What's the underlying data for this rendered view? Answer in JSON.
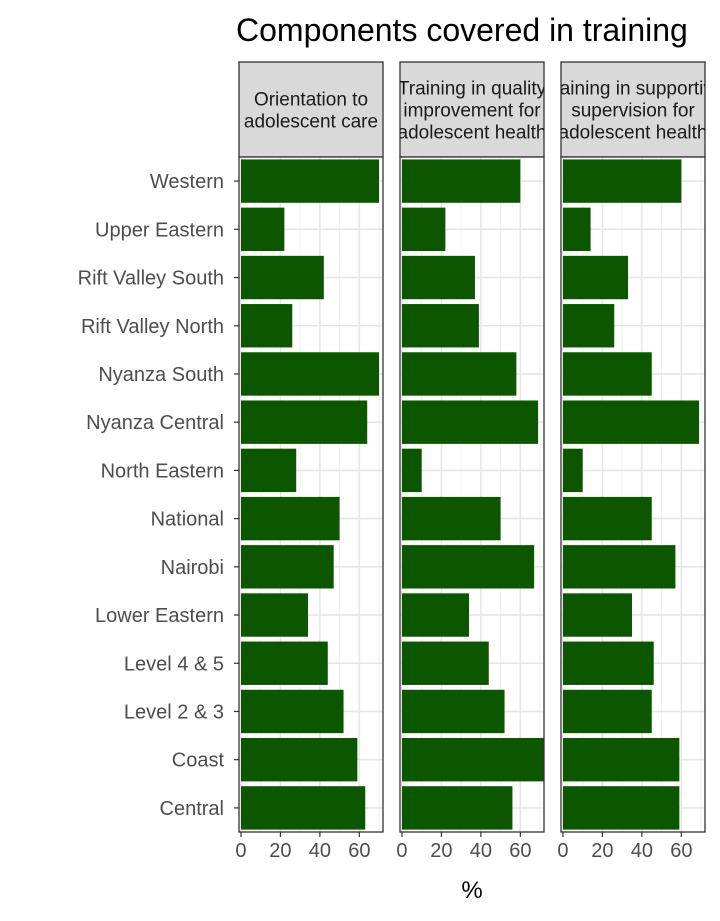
{
  "chart_data": {
    "type": "bar",
    "orientation": "horizontal",
    "title": "Components covered in training",
    "xlabel": "%",
    "ylabel": "",
    "xlim": [
      -1,
      72
    ],
    "xticks": [
      0,
      20,
      40,
      60
    ],
    "grid": true,
    "bar_color": "#0c5600",
    "categories": [
      "Western",
      "Upper Eastern",
      "Rift Valley South",
      "Rift Valley North",
      "Nyanza South",
      "Nyanza Central",
      "North Eastern",
      "National",
      "Nairobi",
      "Lower Eastern",
      "Level 4 & 5",
      "Level 2 & 3",
      "Coast",
      "Central"
    ],
    "panels": [
      {
        "strip_lines": [
          "Orientation to",
          "adolescent care"
        ],
        "values": [
          70,
          22,
          42,
          26,
          70,
          64,
          28,
          50,
          47,
          34,
          44,
          52,
          59,
          63
        ]
      },
      {
        "strip_lines": [
          "Training in quality",
          "improvement for",
          "adolescent health"
        ],
        "values": [
          60,
          22,
          37,
          39,
          58,
          69,
          10,
          50,
          67,
          34,
          44,
          52,
          72,
          56
        ]
      },
      {
        "strip_lines": [
          "Training in supportive",
          "supervision for",
          "adolescent health"
        ],
        "values": [
          60,
          14,
          33,
          26,
          45,
          69,
          10,
          45,
          57,
          35,
          46,
          45,
          59,
          59
        ]
      }
    ]
  }
}
